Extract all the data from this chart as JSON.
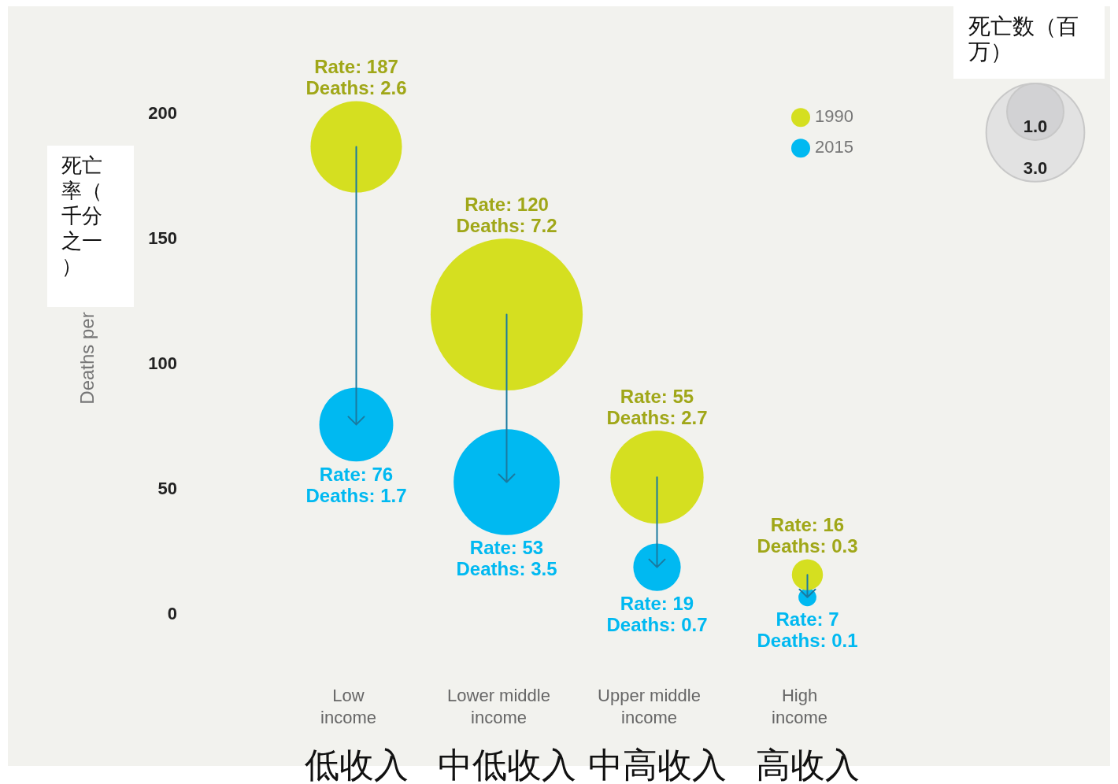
{
  "chart_data": {
    "type": "bubble",
    "ylabel": "Deaths per",
    "categories": [
      "Low\nincome\n低收入",
      "Lower middle\nincome\n中低收入",
      "Upper middle\nincome\n中高收入",
      "High\nincome\n高收入"
    ],
    "series": [
      {
        "name": "1990",
        "color": "#d5df20",
        "values": [
          187,
          120,
          55,
          16
        ],
        "sizes": [
          2.6,
          7.2,
          2.7,
          0.3
        ],
        "value_labels": [
          "Rate: 187\nDeaths: 2.6",
          "Rate: 120\nDeaths: 7.2",
          "Rate: 55\nDeaths: 2.7",
          "Rate: 16\nDeaths: 0.3"
        ]
      },
      {
        "name": "2015",
        "color": "#00b9f1",
        "values": [
          76,
          53,
          19,
          7
        ],
        "sizes": [
          1.7,
          3.5,
          0.7,
          0.1
        ],
        "value_labels": [
          "Rate: 76\nDeaths: 1.7",
          "Rate: 53\nDeaths: 3.5",
          "Rate: 19\nDeaths: 0.7",
          "Rate: 7\nDeaths: 0.1"
        ]
      }
    ],
    "size_legend": [
      {
        "value": 1,
        "label": "1.0"
      },
      {
        "value": 3,
        "label": "3.0"
      }
    ],
    "legend_title": "死亡数（百万）",
    "annotations": [
      "死亡率（千分之一）"
    ],
    "ylim": [
      0,
      200
    ],
    "yticks": [
      0,
      50,
      100,
      150,
      200
    ],
    "grid": false,
    "legend": "top right"
  }
}
